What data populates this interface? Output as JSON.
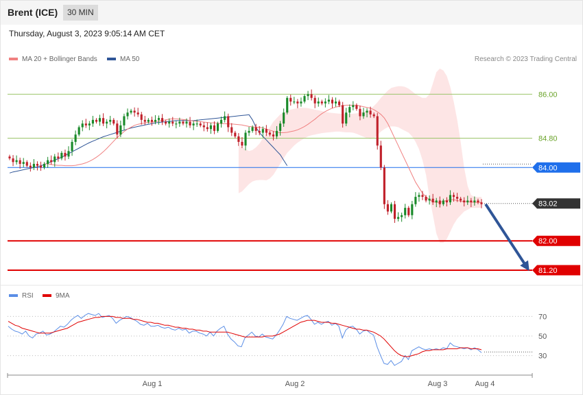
{
  "header": {
    "symbol": "Brent (ICE)",
    "interval": "30 MIN"
  },
  "timestamp": "Thursday, August 3, 2023 9:05:14 AM CET",
  "legend": {
    "ma20_label": "MA 20 + Bollinger Bands",
    "ma50_label": "MA 50",
    "rsi_label": "RSI",
    "rsi_ma_label": "9MA",
    "copyright": "Research © 2023 Trading Central"
  },
  "colors": {
    "ma20": "#f08080",
    "ma50": "#2f5597",
    "bands": "#fde0e0",
    "up_candle": "#1a8a2a",
    "down_candle": "#c0202a",
    "resistance": "#9bc46a",
    "pivot": "#1f6feb",
    "support": "#e00000",
    "rsi": "#5b8ee6",
    "rsi_ma": "#e00000",
    "last_price_bg": "#333333",
    "arrow": "#2f5597"
  },
  "chart_data": [
    {
      "type": "candlestick",
      "title": "",
      "ylim": [
        80.9,
        86.7
      ],
      "x_tick_labels": [
        "Aug 1",
        "Aug 2",
        "Aug 3",
        "Aug 4"
      ],
      "levels": [
        {
          "label": "86.00",
          "value": 86.0,
          "kind": "resistance"
        },
        {
          "label": "84.80",
          "value": 84.8,
          "kind": "resistance"
        },
        {
          "label": "84.00",
          "value": 84.0,
          "kind": "pivot"
        },
        {
          "label": "83.02",
          "value": 83.02,
          "kind": "last"
        },
        {
          "label": "82.00",
          "value": 82.0,
          "kind": "support"
        },
        {
          "label": "81.20",
          "value": 81.2,
          "kind": "support"
        }
      ],
      "close": [
        84.25,
        84.15,
        84.2,
        84.1,
        84.15,
        84.05,
        84.0,
        84.1,
        84.05,
        84.0,
        84.1,
        84.2,
        84.15,
        84.3,
        84.25,
        84.4,
        84.3,
        84.45,
        84.7,
        84.9,
        85.1,
        85.2,
        85.15,
        85.2,
        85.3,
        85.25,
        85.35,
        85.2,
        85.25,
        85.3,
        85.2,
        84.9,
        85.15,
        85.4,
        85.5,
        85.55,
        85.5,
        85.45,
        85.3,
        85.25,
        85.3,
        85.25,
        85.3,
        85.35,
        85.25,
        85.2,
        85.25,
        85.2,
        85.2,
        85.25,
        85.2,
        85.25,
        85.15,
        85.2,
        85.2,
        85.15,
        85.1,
        85.05,
        85.15,
        85.0,
        85.2,
        85.3,
        85.4,
        85.1,
        84.95,
        84.85,
        84.7,
        84.6,
        84.95,
        85.0,
        85.1,
        85.0,
        84.95,
        85.05,
        84.95,
        84.9,
        84.85,
        85.0,
        85.2,
        85.5,
        85.9,
        85.8,
        85.8,
        85.75,
        85.8,
        85.95,
        86.0,
        85.9,
        85.75,
        85.8,
        85.75,
        85.8,
        85.85,
        85.75,
        85.8,
        85.7,
        85.2,
        85.5,
        85.65,
        85.7,
        85.6,
        85.4,
        85.5,
        85.55,
        85.45,
        85.4,
        84.6,
        84.0,
        83.0,
        82.8,
        83.0,
        82.6,
        82.65,
        82.7,
        82.9,
        82.7,
        83.0,
        83.2,
        83.25,
        83.2,
        83.1,
        83.15,
        83.05,
        83.1,
        83.0,
        83.1,
        83.05,
        83.25,
        83.2,
        83.15,
        83.1,
        83.05,
        83.1,
        83.05,
        83.1,
        83.05,
        83.0
      ],
      "ma20": [
        84.1,
        84.1,
        84.08,
        84.07,
        84.06,
        84.06,
        84.05,
        84.05,
        84.05,
        84.06,
        84.08,
        84.1,
        84.13,
        84.17,
        84.22,
        84.28,
        84.35,
        84.43,
        84.52,
        84.62,
        84.72,
        84.82,
        84.9,
        84.98,
        85.05,
        85.1,
        85.15,
        85.18,
        85.2,
        85.22,
        85.23,
        85.24,
        85.25,
        85.27,
        85.28,
        85.3,
        85.32,
        85.33,
        85.33,
        85.32,
        85.31,
        85.3,
        85.28,
        85.27,
        85.26,
        85.25,
        85.24,
        85.23,
        85.22,
        85.22,
        85.21,
        85.2,
        85.2,
        85.19,
        85.19,
        85.18,
        85.17,
        85.16,
        85.14,
        85.12,
        85.11,
        85.1,
        85.1,
        85.08,
        85.05,
        85.02,
        84.99,
        84.96,
        84.95,
        84.95,
        84.96,
        84.98,
        85.0,
        85.03,
        85.07,
        85.12,
        85.18,
        85.25,
        85.32,
        85.4,
        85.47,
        85.53,
        85.58,
        85.62,
        85.65,
        85.67,
        85.69,
        85.7,
        85.7,
        85.7,
        85.7,
        85.68,
        85.66,
        85.64,
        85.62,
        85.58,
        85.52,
        85.45,
        85.35,
        85.2,
        85.0,
        84.8,
        84.6,
        84.4,
        84.2,
        84.0,
        83.8,
        83.6,
        83.45,
        83.3,
        83.2,
        83.12,
        83.07,
        83.05,
        83.05,
        83.08,
        83.1,
        83.12,
        83.12,
        83.1,
        83.08,
        83.07,
        83.07,
        83.06,
        83.05,
        83.05,
        83.05
      ],
      "ma50": [
        83.85,
        83.88,
        83.9,
        83.92,
        83.94,
        83.96,
        83.98,
        84.0,
        84.02,
        84.05,
        84.08,
        84.12,
        84.16,
        84.2,
        84.24,
        84.28,
        84.33,
        84.38,
        84.43,
        84.48,
        84.53,
        84.58,
        84.63,
        84.68,
        84.72,
        84.76,
        84.8,
        84.84,
        84.87,
        84.9,
        84.93,
        84.96,
        84.99,
        85.02,
        85.05,
        85.08,
        85.1,
        85.12,
        85.14,
        85.16,
        85.18,
        85.2,
        85.22,
        85.23,
        85.24,
        85.25,
        85.26,
        85.27,
        85.28,
        85.28,
        85.28,
        85.28,
        85.28,
        85.28,
        85.29,
        85.3,
        85.31,
        85.32,
        85.33,
        85.34,
        85.35,
        85.36,
        85.37,
        85.38,
        85.39,
        85.4,
        85.41,
        85.42,
        85.43,
        85.44,
        85.3,
        85.1,
        84.95,
        84.85,
        84.75,
        84.65,
        84.55,
        84.45,
        84.35,
        84.2,
        84.05
      ],
      "bb_upper": [
        84.6,
        84.55,
        84.5,
        84.45,
        84.48,
        84.55,
        84.65,
        84.8,
        84.95,
        85.1,
        85.25,
        85.35,
        85.45,
        85.5,
        85.55,
        85.58,
        85.6,
        85.62,
        85.63,
        85.63,
        85.62,
        85.6,
        85.58,
        85.56,
        85.54,
        85.52,
        85.5,
        85.49,
        85.48,
        85.47,
        85.46,
        85.46,
        85.46,
        85.47,
        85.48,
        85.5,
        85.52,
        85.55,
        85.6,
        85.68,
        85.78,
        85.9,
        86.0,
        86.1,
        86.17,
        86.2,
        86.22,
        86.22,
        86.2,
        86.15,
        86.08,
        86.0,
        85.95,
        85.9,
        85.9,
        86.0,
        86.3,
        86.6,
        86.7,
        86.65,
        86.5,
        86.2,
        85.8,
        85.3,
        84.7,
        84.0,
        83.5,
        83.25,
        83.2,
        83.2,
        83.2
      ],
      "bb_lower": [
        83.3,
        83.35,
        83.45,
        83.55,
        83.62,
        83.65,
        83.66,
        83.66,
        83.65,
        83.7,
        83.8,
        83.95,
        84.1,
        84.25,
        84.4,
        84.5,
        84.6,
        84.68,
        84.74,
        84.8,
        84.85,
        84.88,
        84.9,
        84.92,
        84.94,
        84.95,
        84.96,
        84.97,
        84.98,
        84.98,
        84.97,
        84.96,
        84.96,
        84.95,
        84.92,
        84.88,
        84.84,
        84.8,
        84.78,
        84.8,
        84.88,
        84.98,
        85.05,
        85.1,
        85.12,
        85.12,
        85.1,
        85.05,
        85.0,
        84.95,
        84.85,
        84.7,
        84.5,
        84.2,
        83.8,
        83.2,
        82.7,
        82.2,
        81.95,
        81.95,
        82.05,
        82.25,
        82.45,
        82.6,
        82.7,
        82.8,
        82.85,
        82.9,
        82.9,
        82.9,
        82.9
      ],
      "forecast_arrow": {
        "from": 83.02,
        "to": 81.2
      }
    },
    {
      "type": "line",
      "title": "",
      "ylim": [
        15,
        85
      ],
      "y_ticks": [
        70,
        50,
        30
      ],
      "series": [
        {
          "name": "RSI",
          "values": [
            60,
            57,
            55,
            54,
            52,
            55,
            50,
            48,
            52,
            53,
            55,
            51,
            52,
            54,
            57,
            60,
            59,
            62,
            66,
            69,
            71,
            68,
            71,
            73,
            72,
            71,
            73,
            69,
            70,
            71,
            68,
            63,
            66,
            68,
            70,
            69,
            67,
            65,
            62,
            61,
            63,
            60,
            60,
            61,
            59,
            58,
            59,
            57,
            56,
            58,
            56,
            57,
            53,
            55,
            55,
            53,
            52,
            50,
            54,
            50,
            55,
            58,
            60,
            52,
            47,
            44,
            40,
            39,
            48,
            51,
            54,
            50,
            49,
            52,
            49,
            48,
            47,
            51,
            56,
            62,
            70,
            68,
            67,
            66,
            68,
            70,
            71,
            67,
            62,
            64,
            62,
            64,
            65,
            61,
            63,
            60,
            48,
            56,
            59,
            60,
            57,
            52,
            55,
            56,
            53,
            51,
            39,
            30,
            22,
            21,
            25,
            20,
            22,
            24,
            30,
            26,
            35,
            37,
            39,
            37,
            36,
            37,
            36,
            37,
            36,
            38,
            37,
            43,
            40,
            39,
            38,
            37,
            38,
            36,
            38,
            36,
            33
          ]
        },
        {
          "name": "9MA",
          "values": [
            65,
            63,
            61,
            60,
            58,
            57,
            56,
            55,
            54,
            53,
            53,
            53,
            53,
            54,
            55,
            56,
            57,
            58,
            60,
            62,
            64,
            65,
            66,
            67,
            68,
            69,
            69,
            70,
            70,
            70,
            70,
            69,
            69,
            68,
            68,
            68,
            67,
            67,
            66,
            65,
            64,
            64,
            63,
            63,
            62,
            61,
            61,
            60,
            59,
            59,
            58,
            58,
            57,
            57,
            56,
            56,
            55,
            55,
            54,
            54,
            54,
            54,
            54,
            54,
            53,
            52,
            51,
            50,
            49,
            49,
            49,
            49,
            49,
            49,
            50,
            50,
            50,
            51,
            52,
            54,
            56,
            58,
            60,
            62,
            64,
            65,
            66,
            66,
            66,
            65,
            64,
            64,
            64,
            63,
            63,
            62,
            61,
            60,
            59,
            58,
            57,
            57,
            56,
            56,
            55,
            54,
            52,
            50,
            47,
            43,
            39,
            35,
            32,
            30,
            29,
            29,
            30,
            31,
            32,
            34,
            35,
            35,
            36,
            36,
            36,
            36,
            37,
            37,
            37,
            37,
            38,
            38,
            38,
            37,
            37,
            37,
            36
          ]
        }
      ]
    }
  ]
}
